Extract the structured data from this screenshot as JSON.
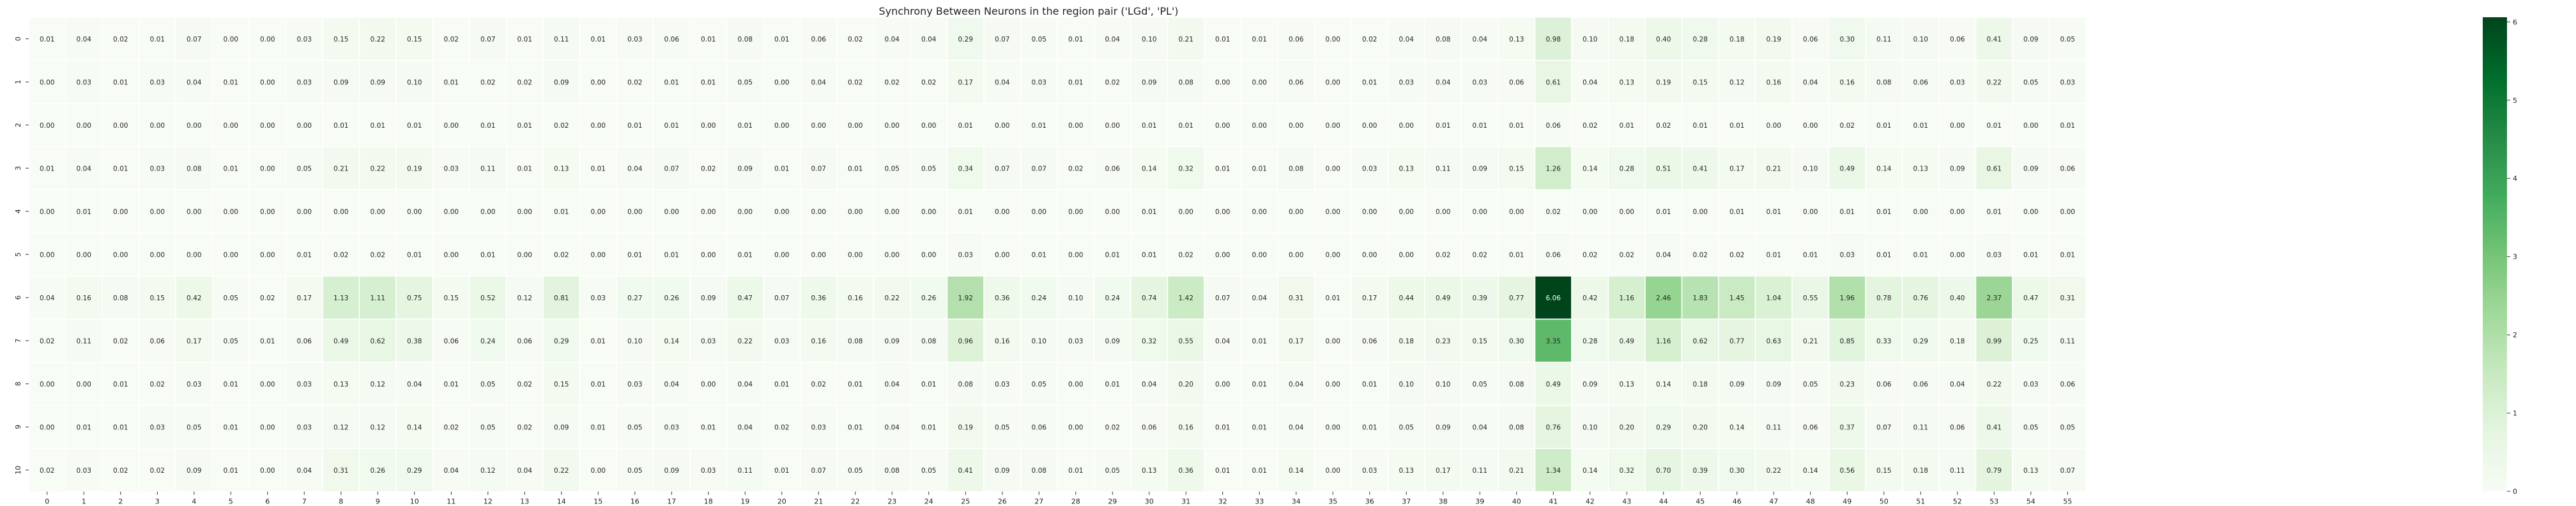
{
  "chart_data": {
    "type": "heatmap",
    "title": "Synchrony Between Neurons in the region pair  ('LGd', 'PL')",
    "x_categories": [
      "0",
      "1",
      "2",
      "3",
      "4",
      "5",
      "6",
      "7",
      "8",
      "9",
      "10",
      "11",
      "12",
      "13",
      "14",
      "15",
      "16",
      "17",
      "18",
      "19",
      "20",
      "21",
      "22",
      "23",
      "24",
      "25",
      "26",
      "27",
      "28",
      "29",
      "30",
      "31",
      "32",
      "33",
      "34",
      "35",
      "36",
      "37",
      "38",
      "39",
      "40",
      "41",
      "42",
      "43",
      "44",
      "45",
      "46",
      "47",
      "48",
      "49",
      "50",
      "51",
      "52",
      "53",
      "54",
      "55"
    ],
    "y_categories": [
      "0",
      "1",
      "2",
      "3",
      "4",
      "5",
      "6",
      "7",
      "8",
      "9",
      "10"
    ],
    "values": [
      [
        0.01,
        0.04,
        0.02,
        0.01,
        0.07,
        0.0,
        0.0,
        0.03,
        0.15,
        0.22,
        0.15,
        0.02,
        0.07,
        0.01,
        0.11,
        0.01,
        0.03,
        0.06,
        0.01,
        0.08,
        0.01,
        0.06,
        0.02,
        0.04,
        0.04,
        0.29,
        0.07,
        0.05,
        0.01,
        0.04,
        0.1,
        0.21,
        0.01,
        0.01,
        0.06,
        0.0,
        0.02,
        0.04,
        0.08,
        0.04,
        0.13,
        0.98,
        0.1,
        0.18,
        0.4,
        0.28,
        0.18,
        0.19,
        0.06,
        0.3,
        0.11,
        0.1,
        0.06,
        0.41,
        0.09,
        0.05
      ],
      [
        0.0,
        0.03,
        0.01,
        0.03,
        0.04,
        0.01,
        0.0,
        0.03,
        0.09,
        0.09,
        0.1,
        0.01,
        0.02,
        0.02,
        0.09,
        0.0,
        0.02,
        0.01,
        0.01,
        0.05,
        0.0,
        0.04,
        0.02,
        0.02,
        0.02,
        0.17,
        0.04,
        0.03,
        0.01,
        0.02,
        0.09,
        0.08,
        0.0,
        0.0,
        0.06,
        0.0,
        0.01,
        0.03,
        0.04,
        0.03,
        0.06,
        0.61,
        0.04,
        0.13,
        0.19,
        0.15,
        0.12,
        0.16,
        0.04,
        0.16,
        0.08,
        0.06,
        0.03,
        0.22,
        0.05,
        0.03
      ],
      [
        0.0,
        0.0,
        0.0,
        0.0,
        0.0,
        0.0,
        0.0,
        0.0,
        0.01,
        0.01,
        0.01,
        0.0,
        0.01,
        0.01,
        0.02,
        0.0,
        0.01,
        0.01,
        0.0,
        0.01,
        0.0,
        0.0,
        0.0,
        0.0,
        0.0,
        0.01,
        0.0,
        0.01,
        0.0,
        0.0,
        0.01,
        0.01,
        0.0,
        0.0,
        0.0,
        0.0,
        0.0,
        0.0,
        0.01,
        0.01,
        0.01,
        0.06,
        0.02,
        0.01,
        0.02,
        0.01,
        0.01,
        0.0,
        0.0,
        0.02,
        0.01,
        0.01,
        0.0,
        0.01,
        0.0,
        0.01
      ],
      [
        0.01,
        0.04,
        0.01,
        0.03,
        0.08,
        0.01,
        0.0,
        0.05,
        0.21,
        0.22,
        0.19,
        0.03,
        0.11,
        0.01,
        0.13,
        0.01,
        0.04,
        0.07,
        0.02,
        0.09,
        0.01,
        0.07,
        0.01,
        0.05,
        0.05,
        0.34,
        0.07,
        0.07,
        0.02,
        0.06,
        0.14,
        0.32,
        0.01,
        0.01,
        0.08,
        0.0,
        0.03,
        0.13,
        0.11,
        0.09,
        0.15,
        1.26,
        0.14,
        0.28,
        0.51,
        0.41,
        0.17,
        0.21,
        0.1,
        0.49,
        0.14,
        0.13,
        0.09,
        0.61,
        0.09,
        0.06
      ],
      [
        0.0,
        0.01,
        0.0,
        0.0,
        0.0,
        0.0,
        0.0,
        0.0,
        0.0,
        0.0,
        0.0,
        0.0,
        0.0,
        0.0,
        0.01,
        0.0,
        0.0,
        0.0,
        0.0,
        0.0,
        0.0,
        0.0,
        0.0,
        0.0,
        0.0,
        0.01,
        0.0,
        0.0,
        0.0,
        0.0,
        0.01,
        0.0,
        0.0,
        0.0,
        0.0,
        0.0,
        0.0,
        0.0,
        0.0,
        0.0,
        0.0,
        0.02,
        0.0,
        0.0,
        0.01,
        0.0,
        0.01,
        0.01,
        0.0,
        0.01,
        0.01,
        0.0,
        0.0,
        0.01,
        0.0,
        0.0
      ],
      [
        0.0,
        0.0,
        0.0,
        0.0,
        0.0,
        0.0,
        0.0,
        0.01,
        0.02,
        0.02,
        0.01,
        0.0,
        0.01,
        0.0,
        0.02,
        0.0,
        0.01,
        0.01,
        0.0,
        0.01,
        0.0,
        0.0,
        0.0,
        0.0,
        0.0,
        0.03,
        0.0,
        0.01,
        0.0,
        0.01,
        0.01,
        0.02,
        0.0,
        0.0,
        0.0,
        0.0,
        0.0,
        0.0,
        0.02,
        0.02,
        0.01,
        0.06,
        0.02,
        0.02,
        0.04,
        0.02,
        0.02,
        0.01,
        0.01,
        0.03,
        0.01,
        0.01,
        0.0,
        0.03,
        0.01,
        0.01
      ],
      [
        0.04,
        0.16,
        0.08,
        0.15,
        0.42,
        0.05,
        0.02,
        0.17,
        1.13,
        1.11,
        0.75,
        0.15,
        0.52,
        0.12,
        0.81,
        0.03,
        0.27,
        0.26,
        0.09,
        0.47,
        0.07,
        0.36,
        0.16,
        0.22,
        0.26,
        1.92,
        0.36,
        0.24,
        0.1,
        0.24,
        0.74,
        1.42,
        0.07,
        0.04,
        0.31,
        0.01,
        0.17,
        0.44,
        0.49,
        0.39,
        0.77,
        6.06,
        0.42,
        1.16,
        2.46,
        1.83,
        1.45,
        1.04,
        0.55,
        1.96,
        0.78,
        0.76,
        0.4,
        2.37,
        0.47,
        0.31
      ],
      [
        0.02,
        0.11,
        0.02,
        0.06,
        0.17,
        0.05,
        0.01,
        0.06,
        0.49,
        0.62,
        0.38,
        0.06,
        0.24,
        0.06,
        0.29,
        0.01,
        0.1,
        0.14,
        0.03,
        0.22,
        0.03,
        0.16,
        0.08,
        0.09,
        0.08,
        0.96,
        0.16,
        0.1,
        0.03,
        0.09,
        0.32,
        0.55,
        0.04,
        0.01,
        0.17,
        0.0,
        0.06,
        0.18,
        0.23,
        0.15,
        0.3,
        3.35,
        0.28,
        0.49,
        1.16,
        0.62,
        0.77,
        0.63,
        0.21,
        0.85,
        0.33,
        0.29,
        0.18,
        0.99,
        0.25,
        0.11
      ],
      [
        0.0,
        0.0,
        0.01,
        0.02,
        0.03,
        0.01,
        0.0,
        0.03,
        0.13,
        0.12,
        0.04,
        0.01,
        0.05,
        0.02,
        0.15,
        0.01,
        0.03,
        0.04,
        0.0,
        0.04,
        0.01,
        0.02,
        0.01,
        0.04,
        0.01,
        0.08,
        0.03,
        0.05,
        0.0,
        0.01,
        0.04,
        0.2,
        0.0,
        0.01,
        0.04,
        0.0,
        0.01,
        0.1,
        0.1,
        0.05,
        0.08,
        0.49,
        0.09,
        0.13,
        0.14,
        0.18,
        0.09,
        0.09,
        0.05,
        0.23,
        0.06,
        0.06,
        0.04,
        0.22,
        0.03,
        0.06
      ],
      [
        0.0,
        0.01,
        0.01,
        0.03,
        0.05,
        0.01,
        0.0,
        0.03,
        0.12,
        0.12,
        0.14,
        0.02,
        0.05,
        0.02,
        0.09,
        0.01,
        0.05,
        0.03,
        0.01,
        0.04,
        0.02,
        0.03,
        0.01,
        0.04,
        0.01,
        0.19,
        0.05,
        0.06,
        0.0,
        0.02,
        0.06,
        0.16,
        0.01,
        0.01,
        0.04,
        0.0,
        0.01,
        0.05,
        0.09,
        0.04,
        0.08,
        0.76,
        0.1,
        0.2,
        0.29,
        0.2,
        0.14,
        0.11,
        0.06,
        0.37,
        0.07,
        0.11,
        0.06,
        0.41,
        0.05,
        0.05
      ],
      [
        0.02,
        0.03,
        0.02,
        0.02,
        0.09,
        0.01,
        0.0,
        0.04,
        0.31,
        0.26,
        0.29,
        0.04,
        0.12,
        0.04,
        0.22,
        0.0,
        0.05,
        0.09,
        0.03,
        0.11,
        0.01,
        0.07,
        0.05,
        0.08,
        0.05,
        0.41,
        0.09,
        0.08,
        0.01,
        0.05,
        0.13,
        0.36,
        0.01,
        0.01,
        0.14,
        0.0,
        0.03,
        0.13,
        0.17,
        0.11,
        0.21,
        1.34,
        0.14,
        0.32,
        0.7,
        0.39,
        0.3,
        0.22,
        0.14,
        0.56,
        0.15,
        0.18,
        0.11,
        0.79,
        0.13,
        0.07
      ]
    ],
    "vmin": 0,
    "vmax": 6.06,
    "colormap": "Greens",
    "colorbar_ticks": [
      "0",
      "1",
      "2",
      "3",
      "4",
      "5",
      "6"
    ],
    "colors": {
      "low": "#f7fcf5",
      "mid": "#74c476",
      "high": "#00441b"
    }
  }
}
